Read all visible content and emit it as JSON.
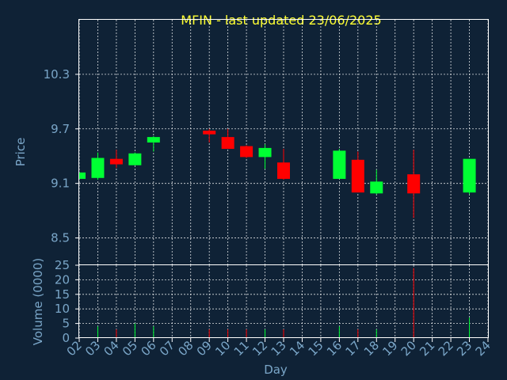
{
  "chart_data": {
    "type": "candlestick",
    "title": "MFIN - last updated 23/06/2025",
    "xlabel": "Day",
    "price_axis": {
      "label": "Price",
      "ylim": [
        8.2,
        10.9
      ],
      "ticks": [
        8.5,
        9.1,
        9.7,
        10.3
      ],
      "tick_labels": [
        "8.5",
        "9.1",
        "9.7",
        "10.3"
      ]
    },
    "volume_axis": {
      "label": "Volume (0000)",
      "ylim": [
        0,
        25
      ],
      "ticks": [
        0,
        5,
        10,
        15,
        20,
        25
      ],
      "tick_labels": [
        "0",
        "5",
        "10",
        "15",
        "20",
        "25"
      ]
    },
    "x_range": [
      2,
      24
    ],
    "x_ticks": [
      2,
      3,
      4,
      5,
      6,
      7,
      8,
      9,
      10,
      11,
      12,
      13,
      14,
      15,
      16,
      17,
      18,
      19,
      20,
      21,
      22,
      23,
      24
    ],
    "x_tick_labels": [
      "02",
      "03",
      "04",
      "05",
      "06",
      "07",
      "08",
      "09",
      "10",
      "11",
      "12",
      "13",
      "14",
      "15",
      "16",
      "17",
      "18",
      "19",
      "20",
      "21",
      "22",
      "23",
      "24"
    ],
    "grid": true,
    "colors": {
      "up": "#00ff33",
      "down": "#ff0000",
      "background": "#0f2236",
      "title": "#ffff33",
      "axis_text": "#7aa6c8"
    },
    "candles": [
      {
        "day": 2,
        "open": 9.15,
        "close": 9.22,
        "high": 9.22,
        "low": 9.15,
        "volume": 0
      },
      {
        "day": 3,
        "open": 9.16,
        "close": 9.38,
        "high": 9.44,
        "low": 9.14,
        "volume": 4
      },
      {
        "day": 4,
        "open": 9.37,
        "close": 9.31,
        "high": 9.47,
        "low": 9.27,
        "volume": 3
      },
      {
        "day": 5,
        "open": 9.3,
        "close": 9.43,
        "high": 9.44,
        "low": 9.3,
        "volume": 5
      },
      {
        "day": 6,
        "open": 9.55,
        "close": 9.61,
        "high": 9.62,
        "low": 9.45,
        "volume": 4
      },
      {
        "day": 9,
        "open": 9.68,
        "close": 9.64,
        "high": 9.7,
        "low": 9.55,
        "volume": 3
      },
      {
        "day": 10,
        "open": 9.61,
        "close": 9.48,
        "high": 9.7,
        "low": 9.48,
        "volume": 3
      },
      {
        "day": 11,
        "open": 9.51,
        "close": 9.39,
        "high": 9.52,
        "low": 9.38,
        "volume": 3
      },
      {
        "day": 12,
        "open": 9.39,
        "close": 9.49,
        "high": 9.53,
        "low": 9.26,
        "volume": 3
      },
      {
        "day": 13,
        "open": 9.33,
        "close": 9.15,
        "high": 9.48,
        "low": 9.14,
        "volume": 3
      },
      {
        "day": 16,
        "open": 9.15,
        "close": 9.46,
        "high": 9.48,
        "low": 9.15,
        "volume": 4
      },
      {
        "day": 17,
        "open": 9.36,
        "close": 9.0,
        "high": 9.45,
        "low": 9.0,
        "volume": 3
      },
      {
        "day": 18,
        "open": 8.99,
        "close": 9.12,
        "high": 9.25,
        "low": 8.98,
        "volume": 3
      },
      {
        "day": 20,
        "open": 9.2,
        "close": 8.99,
        "high": 9.47,
        "low": 8.72,
        "volume": 24
      },
      {
        "day": 23,
        "open": 9.0,
        "close": 9.37,
        "high": 9.37,
        "low": 8.98,
        "volume": 7
      }
    ]
  }
}
